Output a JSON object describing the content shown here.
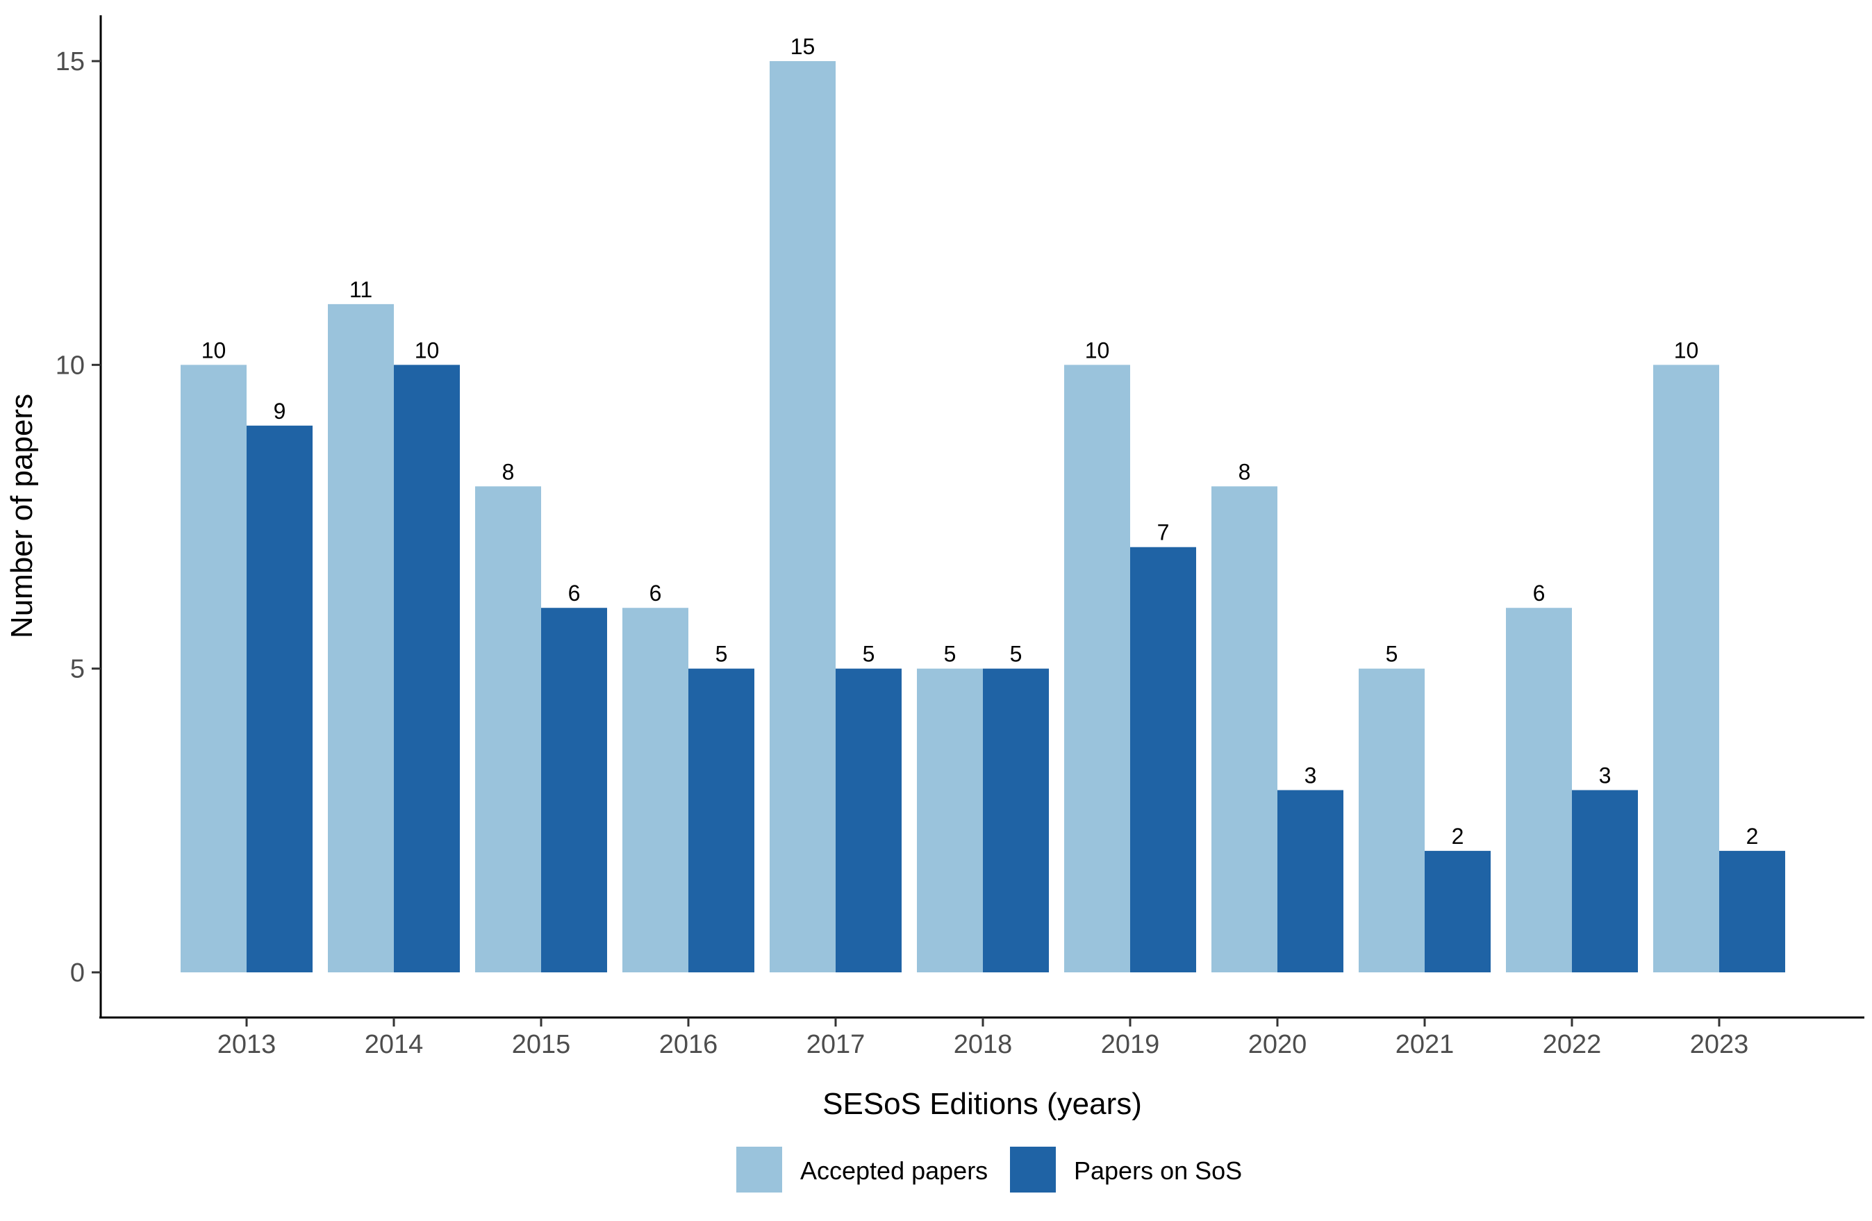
{
  "chart_data": {
    "type": "bar",
    "categories": [
      "2013",
      "2014",
      "2015",
      "2016",
      "2017",
      "2018",
      "2019",
      "2020",
      "2021",
      "2022",
      "2023"
    ],
    "series": [
      {
        "name": "Accepted papers",
        "values": [
          10,
          11,
          8,
          6,
          15,
          5,
          10,
          8,
          5,
          6,
          10
        ],
        "color": "#9ac3dc"
      },
      {
        "name": "Papers on SoS",
        "values": [
          9,
          10,
          6,
          5,
          5,
          5,
          7,
          3,
          2,
          3,
          2
        ],
        "color": "#1f63a5"
      }
    ],
    "title": "",
    "xlabel": "SESoS Editions (years)",
    "ylabel": "Number of papers",
    "ylim": [
      0,
      15
    ],
    "yticks": [
      0,
      5,
      10,
      15
    ],
    "grid": false,
    "legend_position": "bottom"
  }
}
